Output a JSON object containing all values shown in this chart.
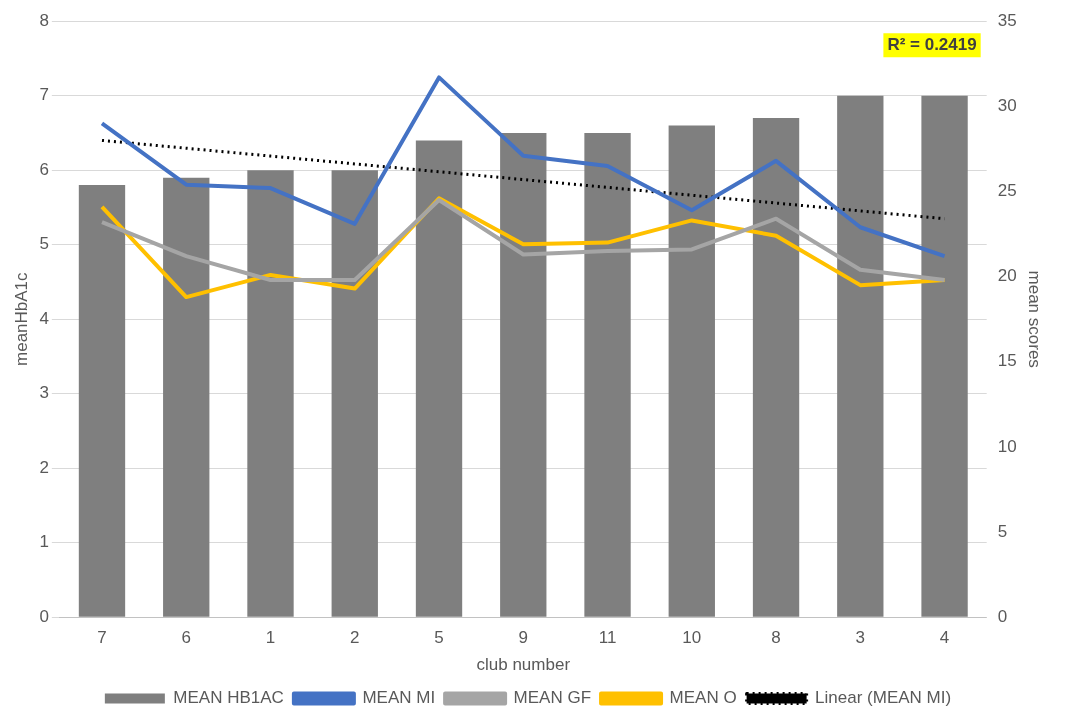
{
  "chart_data": {
    "type": "bar",
    "xlabel": "club number",
    "ylabel": "meanHbA1c",
    "y2label": "mean scores",
    "categories": [
      "7",
      "6",
      "1",
      "2",
      "5",
      "9",
      "11",
      "10",
      "8",
      "3",
      "4"
    ],
    "series": [
      {
        "name": "MEAN HB1AC",
        "color": "#7f7f7f",
        "values": [
          5.8,
          5.9,
          6.0,
          6.0,
          6.4,
          6.5,
          6.5,
          6.6,
          6.7,
          7.0,
          7.0
        ]
      },
      {
        "name": "MEAN MI",
        "type": "line",
        "axis": "y2",
        "color": "#4472c4",
        "values": [
          29.0,
          25.4,
          25.2,
          23.1,
          31.7,
          27.1,
          26.5,
          23.9,
          26.8,
          22.9,
          21.2
        ]
      },
      {
        "name": "MEAN GF",
        "type": "line",
        "axis": "y2",
        "color": "#a5a5a5",
        "values": [
          23.2,
          21.2,
          19.8,
          19.8,
          24.5,
          21.3,
          21.5,
          21.6,
          23.4,
          20.4,
          19.8
        ]
      },
      {
        "name": "MEAN O",
        "type": "line",
        "axis": "y2",
        "color": "#ffc000",
        "values": [
          24.1,
          18.8,
          20.1,
          19.3,
          24.6,
          21.9,
          22.0,
          23.3,
          22.4,
          19.5,
          19.8
        ]
      },
      {
        "name": "Linear (MEAN MI)",
        "type": "line",
        "axis": "y2",
        "line_style": "dotted",
        "color": "#000000",
        "values": [
          28.0,
          27.54,
          27.08,
          26.62,
          26.16,
          25.7,
          25.24,
          24.78,
          24.32,
          23.86,
          23.4
        ]
      }
    ],
    "ylim": [
      0,
      8
    ],
    "yticks": [
      0,
      1,
      2,
      3,
      4,
      5,
      6,
      7,
      8
    ],
    "y2lim": [
      0,
      35
    ],
    "y2ticks": [
      0,
      5,
      10,
      15,
      20,
      25,
      30,
      35
    ],
    "annotations": [
      "R² = 0.2419"
    ],
    "grid": "y",
    "legend": "bottom",
    "marker": "none"
  }
}
